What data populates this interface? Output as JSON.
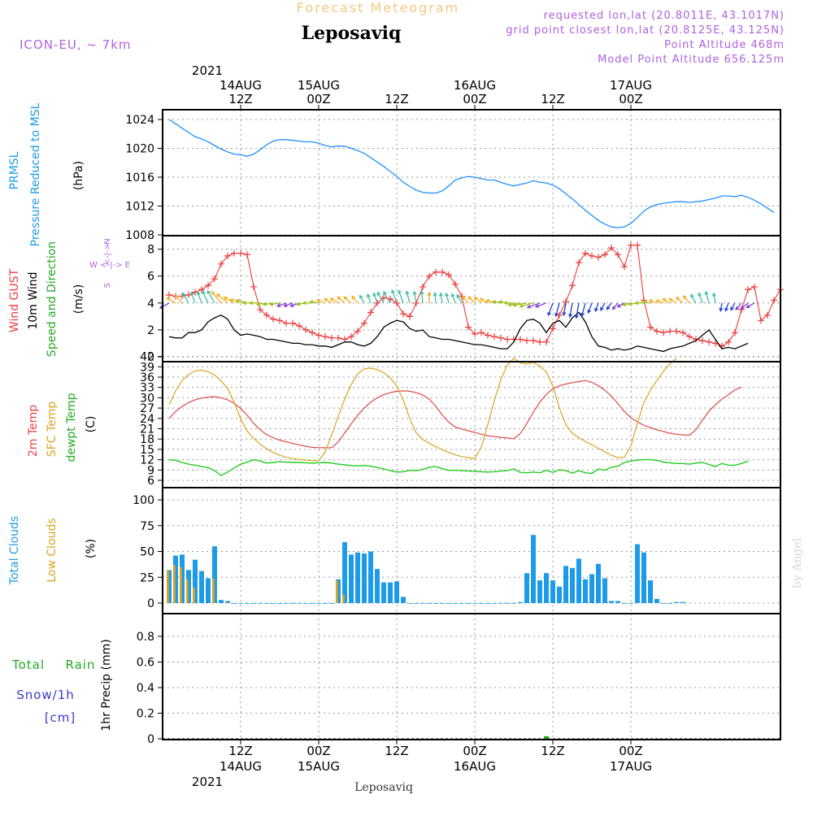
{
  "header": {
    "title": "Leposaviq",
    "subtitle": "Forecast Meteogram",
    "model": "ICON-EU, ~ 7km",
    "requested": "requested lon,lat (20.8011E, 43.1017N)",
    "grid_point": "grid point closest lon,lat (20.8125E, 43.125N)",
    "point_alt": "Point Altitude 468m",
    "model_alt": "Model Point Altitude 656.125m",
    "bottom_label": "Leposaviq",
    "watermark": "by Angel",
    "year": "2021"
  },
  "time_axis": {
    "major_ticks": [
      {
        "pos": 12,
        "hour": "12Z",
        "date": "14AUG"
      },
      {
        "pos": 24,
        "hour": "00Z",
        "date": "15AUG"
      },
      {
        "pos": 36,
        "hour": "12Z",
        "date": ""
      },
      {
        "pos": 48,
        "hour": "00Z",
        "date": "16AUG"
      },
      {
        "pos": 60,
        "hour": "12Z",
        "date": ""
      },
      {
        "pos": 72,
        "hour": "00Z",
        "date": "17AUG"
      }
    ],
    "bottom_ticks": [
      {
        "pos": 12,
        "hour": "12Z",
        "date": "14AUG"
      },
      {
        "pos": 24,
        "hour": "00Z",
        "date": "15AUG"
      },
      {
        "pos": 36,
        "hour": "12Z",
        "date": ""
      },
      {
        "pos": 48,
        "hour": "00Z",
        "date": "16AUG"
      },
      {
        "pos": 60,
        "hour": "12Z",
        "date": ""
      },
      {
        "pos": 72,
        "hour": "00Z",
        "date": "17AUG"
      }
    ]
  },
  "panels": {
    "pressure": {
      "label_name": "PRMSL",
      "label_desc": "Pressure Reduced to MSL",
      "unit": "(hPa)",
      "ticks": [
        "1008",
        "1012",
        "1016",
        "1020",
        "1024"
      ],
      "tick_values": [
        1008,
        1012,
        1016,
        1020,
        1024
      ]
    },
    "wind": {
      "label_gust": "Wind GUST",
      "label_wind": "10m Wind",
      "label_dir": "Speed and Direction",
      "unit": "(m/s)",
      "compass_n": "N",
      "compass_s": "S",
      "compass_we": "W <-|-> E",
      "ticks": [
        "0",
        "2",
        "4",
        "6",
        "8"
      ],
      "tick_values": [
        0,
        2,
        4,
        6,
        8
      ]
    },
    "temp": {
      "label_2m": "2m Temp",
      "label_sfc": "SFC Temp",
      "label_dew": "dewpt Temp",
      "unit": "(C)",
      "ticks": [
        "6",
        "9",
        "12",
        "15",
        "18",
        "21",
        "24",
        "27",
        "30",
        "33",
        "36",
        "39",
        "42"
      ],
      "tick_values": [
        6,
        9,
        12,
        15,
        18,
        21,
        24,
        27,
        30,
        33,
        36,
        39,
        42
      ]
    },
    "clouds": {
      "label_total": "Total Clouds",
      "label_low": "Low Clouds",
      "unit": "(%)",
      "ticks": [
        "0",
        "25",
        "50",
        "75",
        "100"
      ],
      "tick_values": [
        0,
        25,
        50,
        75,
        100
      ]
    },
    "precip": {
      "label_rain_a": "Total",
      "label_rain_b": "Rain",
      "label_snow": "Snow/1h",
      "label_cm": "[cm]",
      "unit": "1hr Precip (mm)",
      "ticks": [
        "0",
        "0.2",
        "0.4",
        "0.6",
        "0.8"
      ],
      "tick_values": [
        0,
        0.2,
        0.4,
        0.6,
        0.8
      ]
    }
  },
  "colors": {
    "pressure": "#1e90ff",
    "gust": "#ee3b3b",
    "wind": "#000000",
    "t2m": "#e04848",
    "tsfc": "#daa520",
    "dew": "#22cc22",
    "clouds_total": "#1e9be8",
    "clouds_low": "#daa520",
    "rain": "#22aa22",
    "meta": "#b060e0",
    "subtitle": "#f5c880"
  },
  "chart_data": [
    {
      "type": "line",
      "name": "pressure",
      "x_start": 1,
      "x_step": 1,
      "ylim": [
        1008,
        1025
      ],
      "values": [
        1024,
        1023.4,
        1022.8,
        1022.2,
        1021.6,
        1021.3,
        1020.9,
        1020.4,
        1019.9,
        1019.5,
        1019.2,
        1019.1,
        1018.9,
        1019.2,
        1019.8,
        1020.5,
        1021,
        1021.2,
        1021.2,
        1021.1,
        1021,
        1020.9,
        1020.9,
        1020.7,
        1020.4,
        1020.2,
        1020.3,
        1020.3,
        1020,
        1019.7,
        1019.3,
        1018.7,
        1018.1,
        1017.5,
        1016.8,
        1016.1,
        1015.3,
        1014.7,
        1014.2,
        1013.9,
        1013.8,
        1013.8,
        1014.1,
        1014.8,
        1015.6,
        1015.9,
        1016.1,
        1016,
        1015.8,
        1015.6,
        1015.6,
        1015.3,
        1015,
        1014.8,
        1015,
        1015.2,
        1015.5,
        1015.3,
        1015.2,
        1014.9,
        1014.4,
        1013.7,
        1013,
        1012.2,
        1011.4,
        1010.7,
        1010,
        1009.5,
        1009.1,
        1009,
        1009.1,
        1009.6,
        1010.4,
        1011.3,
        1011.9,
        1012.2,
        1012.4,
        1012.5,
        1012.6,
        1012.6,
        1012.5,
        1012.6,
        1012.7,
        1012.9,
        1013.1,
        1013.4,
        1013.4,
        1013.3,
        1013.5,
        1013.2,
        1012.8,
        1012.3,
        1011.7,
        1011.1
      ]
    },
    {
      "type": "line",
      "name": "wind_gust",
      "x_start": 1,
      "x_step": 1,
      "ylim": [
        0,
        9
      ],
      "values": [
        4.6,
        4.5,
        4.5,
        4.6,
        4.8,
        5,
        5.3,
        5.8,
        6.9,
        7.5,
        7.7,
        7.7,
        7.6,
        5.2,
        3.5,
        3.1,
        2.8,
        2.7,
        2.5,
        2.5,
        2.3,
        2,
        1.8,
        1.6,
        1.5,
        1.4,
        1.4,
        1.3,
        1.5,
        1.9,
        2.5,
        3.3,
        4,
        4.4,
        4.3,
        4,
        3.2,
        3,
        4,
        5.2,
        6,
        6.3,
        6.3,
        6.1,
        5.4,
        4.5,
        2.2,
        1.7,
        1.8,
        1.6,
        1.5,
        1.4,
        1.3,
        1.3,
        1.3,
        1.2,
        1.2,
        1.1,
        1.1,
        2.1,
        3.1,
        4.1,
        5.3,
        7,
        7.7,
        7.5,
        7.4,
        7.6,
        8.1,
        7.6,
        6.7,
        8.3,
        8.3,
        4.2,
        2.2,
        1.9,
        1.8,
        1.9,
        1.9,
        1.8,
        1.5,
        1.3,
        1.2,
        1.1,
        1,
        0.8,
        1.1,
        1.8,
        3.5,
        5,
        5.2,
        2.7,
        3.1,
        4.2,
        5
      ]
    },
    {
      "type": "line",
      "name": "wind_10m",
      "x_start": 1,
      "x_step": 1,
      "ylim": [
        0,
        9
      ],
      "values": [
        1.5,
        1.4,
        1.4,
        1.8,
        1.8,
        2,
        2.6,
        2.9,
        3.1,
        2.8,
        2,
        1.6,
        1.7,
        1.6,
        1.5,
        1.3,
        1.3,
        1.2,
        1.1,
        1,
        1,
        0.9,
        0.9,
        0.8,
        0.8,
        0.7,
        0.9,
        1.1,
        1.1,
        0.9,
        0.8,
        1,
        1.5,
        2.2,
        2.5,
        2.7,
        2.6,
        2.1,
        1.9,
        2,
        1.5,
        1.4,
        1.3,
        1.3,
        1.2,
        1.1,
        1,
        0.9,
        0.9,
        0.8,
        0.7,
        0.6,
        0.6,
        1.1,
        2.1,
        2.7,
        2.8,
        2.5,
        1.8,
        2.5,
        2.7,
        2.2,
        2.9,
        3.3,
        2.6,
        1.5,
        0.8,
        0.7,
        0.5,
        0.6,
        0.5,
        0.6,
        0.8,
        0.7,
        0.6,
        0.5,
        0.4,
        0.6,
        0.7,
        0.8,
        1,
        1.2,
        1.6,
        2,
        1.3,
        0.6,
        0.7,
        0.6,
        0.8,
        1
      ]
    },
    {
      "type": "line",
      "name": "t2m",
      "x_start": 1,
      "x_step": 1,
      "ylim": [
        4.5,
        43
      ],
      "values": [
        24,
        26,
        27.5,
        28.6,
        29.4,
        29.9,
        30.2,
        30.3,
        30,
        29.4,
        28.4,
        26.9,
        24.9,
        22.6,
        20.7,
        19.3,
        18.4,
        17.7,
        17.2,
        16.7,
        16.3,
        15.9,
        15.6,
        15.5,
        15.5,
        15.5,
        17.1,
        19.8,
        22.4,
        24.9,
        27,
        28.7,
        30,
        30.9,
        31.5,
        31.9,
        32,
        31.9,
        31.5,
        30.8,
        29.6,
        27.5,
        25,
        22.9,
        21.5,
        20.9,
        20.4,
        19.9,
        19.4,
        19,
        18.7,
        18.5,
        18.3,
        18.1,
        19.6,
        22.5,
        25.8,
        28.7,
        31,
        32.6,
        33.5,
        34,
        34.4,
        34.7,
        35,
        34.5,
        33.5,
        32.2,
        30.5,
        28.3,
        26,
        24.2,
        23,
        22,
        21.3,
        20.7,
        20.2,
        19.7,
        19.4,
        19.2,
        19.1,
        20.7,
        23.5,
        26.1,
        28,
        29.6,
        30.9,
        32.3,
        33.1
      ]
    },
    {
      "type": "line",
      "name": "tsfc",
      "x_start": 1,
      "x_step": 1,
      "ylim": [
        4.5,
        43
      ],
      "values": [
        28,
        32,
        35,
        36.8,
        37.8,
        38,
        37.6,
        36.6,
        34.9,
        32.7,
        28.7,
        23.8,
        20.3,
        18.2,
        16.5,
        15.2,
        14.1,
        13.3,
        12.7,
        12.3,
        12.1,
        11.9,
        11.7,
        11.7,
        14.3,
        19.2,
        24.6,
        29.6,
        33.8,
        37,
        38.4,
        38.6,
        38.2,
        37.3,
        35.8,
        33.4,
        29.3,
        23.9,
        19.8,
        17.9,
        16.8,
        15.8,
        14.9,
        14.1,
        13.4,
        12.9,
        12.6,
        12.3,
        15.7,
        22.2,
        29.2,
        35.3,
        39.5,
        41.5,
        40.1,
        39.8,
        40.3,
        39.2,
        37.5,
        33.4,
        27.1,
        22.2,
        19.7,
        18.4,
        17.3,
        16.3,
        15.3,
        14.3,
        13.3,
        12.6,
        12.7,
        16,
        22.6,
        28.6,
        32.2,
        35,
        37.7,
        39.9,
        41.4
      ]
    },
    {
      "type": "line",
      "name": "dewpoint",
      "x_start": 1,
      "x_step": 1,
      "ylim": [
        4.5,
        43
      ],
      "values": [
        12,
        11.8,
        11.2,
        10.7,
        10.4,
        10,
        9.7,
        8.8,
        7.4,
        8.4,
        9.6,
        10.7,
        11.3,
        12,
        11.6,
        11,
        11.2,
        11.4,
        11.3,
        11.2,
        11.2,
        11.1,
        11,
        11.1,
        11.2,
        11,
        10.7,
        10.5,
        10.3,
        10.2,
        10.3,
        10.1,
        9.7,
        9.3,
        8.8,
        8.4,
        8.5,
        8.9,
        8.8,
        9.2,
        9.8,
        10,
        9.4,
        8.9,
        8.9,
        8.8,
        8.7,
        8.6,
        8.5,
        8.4,
        8.5,
        8.7,
        8.8,
        9.3,
        8.3,
        8.2,
        8.4,
        8.2,
        8.9,
        8.3,
        9.1,
        8.8,
        8.1,
        8.8,
        8.2,
        8,
        9.3,
        8.9,
        9.8,
        10.1,
        11.2,
        11.6,
        11.9,
        12,
        12,
        11.8,
        11.3,
        11.1,
        10.9,
        10.9,
        10.7,
        11,
        11.2,
        10.6,
        10,
        10.9,
        10.4,
        10.4,
        10.9,
        11.6
      ]
    },
    {
      "type": "bar",
      "name": "total_clouds",
      "x_start": 1,
      "x_step": 1,
      "ylim": [
        0,
        112
      ],
      "values": [
        32,
        46,
        47,
        32,
        42,
        31,
        24,
        55,
        3,
        2,
        0,
        0,
        0,
        0,
        0,
        0,
        0,
        0,
        0,
        0,
        0,
        0,
        0,
        0,
        0,
        0,
        23,
        59,
        47,
        49,
        48,
        50,
        33,
        20,
        20,
        21,
        6,
        0,
        0,
        0,
        0,
        0,
        0,
        0,
        0,
        0,
        0,
        0,
        0,
        0,
        0,
        0,
        0,
        0,
        1,
        29,
        66,
        22,
        29,
        22,
        16,
        36,
        34,
        43,
        23,
        28,
        38,
        24,
        2,
        2,
        0,
        0,
        57,
        49,
        22,
        4,
        0,
        0,
        1,
        1
      ]
    },
    {
      "type": "bar",
      "name": "low_clouds",
      "x_start": 1,
      "x_step": 1,
      "ylim": [
        0,
        112
      ],
      "values": [
        32,
        37,
        35,
        23,
        15,
        0,
        0,
        24,
        0,
        1,
        0,
        0,
        0,
        0,
        0,
        0,
        0,
        0,
        0,
        0,
        0,
        0,
        0,
        0,
        0,
        0,
        22,
        8,
        0,
        0,
        0,
        0,
        0,
        0,
        0,
        0,
        0,
        0,
        0,
        0,
        0,
        0,
        0,
        0,
        0,
        0,
        0,
        0,
        0,
        0,
        0,
        0,
        0,
        0,
        0,
        0,
        0,
        0,
        0,
        0,
        0,
        0,
        0,
        0,
        0,
        0,
        0,
        0,
        0,
        0,
        0,
        0,
        0,
        0,
        0,
        0,
        0,
        0,
        0,
        0
      ]
    },
    {
      "type": "bar",
      "name": "rain_1h",
      "x_start": 1,
      "x_step": 1,
      "ylim": [
        0,
        1
      ],
      "values": [
        0,
        0,
        0,
        0,
        0,
        0,
        0,
        0,
        0,
        0,
        0,
        0,
        0,
        0,
        0,
        0,
        0,
        0,
        0,
        0,
        0,
        0,
        0,
        0,
        0,
        0,
        0,
        0,
        0,
        0,
        0,
        0,
        0,
        0,
        0,
        0,
        0,
        0,
        0,
        0,
        0,
        0,
        0,
        0,
        0,
        0,
        0,
        0,
        0,
        0,
        0,
        0,
        0,
        0,
        0,
        0,
        0,
        0,
        0.02,
        0,
        0,
        0,
        0,
        0,
        0,
        0,
        0,
        0,
        0,
        0,
        0,
        0,
        0,
        0,
        0,
        0,
        0,
        0,
        0,
        0
      ]
    },
    {
      "type": "wind_barbs",
      "name": "wind_direction",
      "x_start": 1,
      "x_step": 1,
      "direction_deg": [
        240,
        300,
        320,
        330,
        340,
        340,
        335,
        330,
        320,
        310,
        300,
        290,
        285,
        270,
        270,
        260,
        260,
        260,
        250,
        250,
        250,
        260,
        270,
        280,
        290,
        300,
        300,
        310,
        310,
        320,
        330,
        340,
        340,
        330,
        330,
        340,
        340,
        345,
        350,
        355,
        0,
        355,
        350,
        345,
        340,
        330,
        320,
        315,
        310,
        300,
        290,
        280,
        280,
        270,
        260,
        260,
        255,
        250,
        250,
        200,
        195,
        190,
        190,
        190,
        195,
        200,
        200,
        210,
        215,
        220,
        240,
        255,
        260,
        270,
        280,
        290,
        290,
        300,
        300,
        310,
        320,
        330,
        340,
        345,
        350,
        190,
        200,
        210,
        220,
        230,
        240
      ]
    }
  ]
}
